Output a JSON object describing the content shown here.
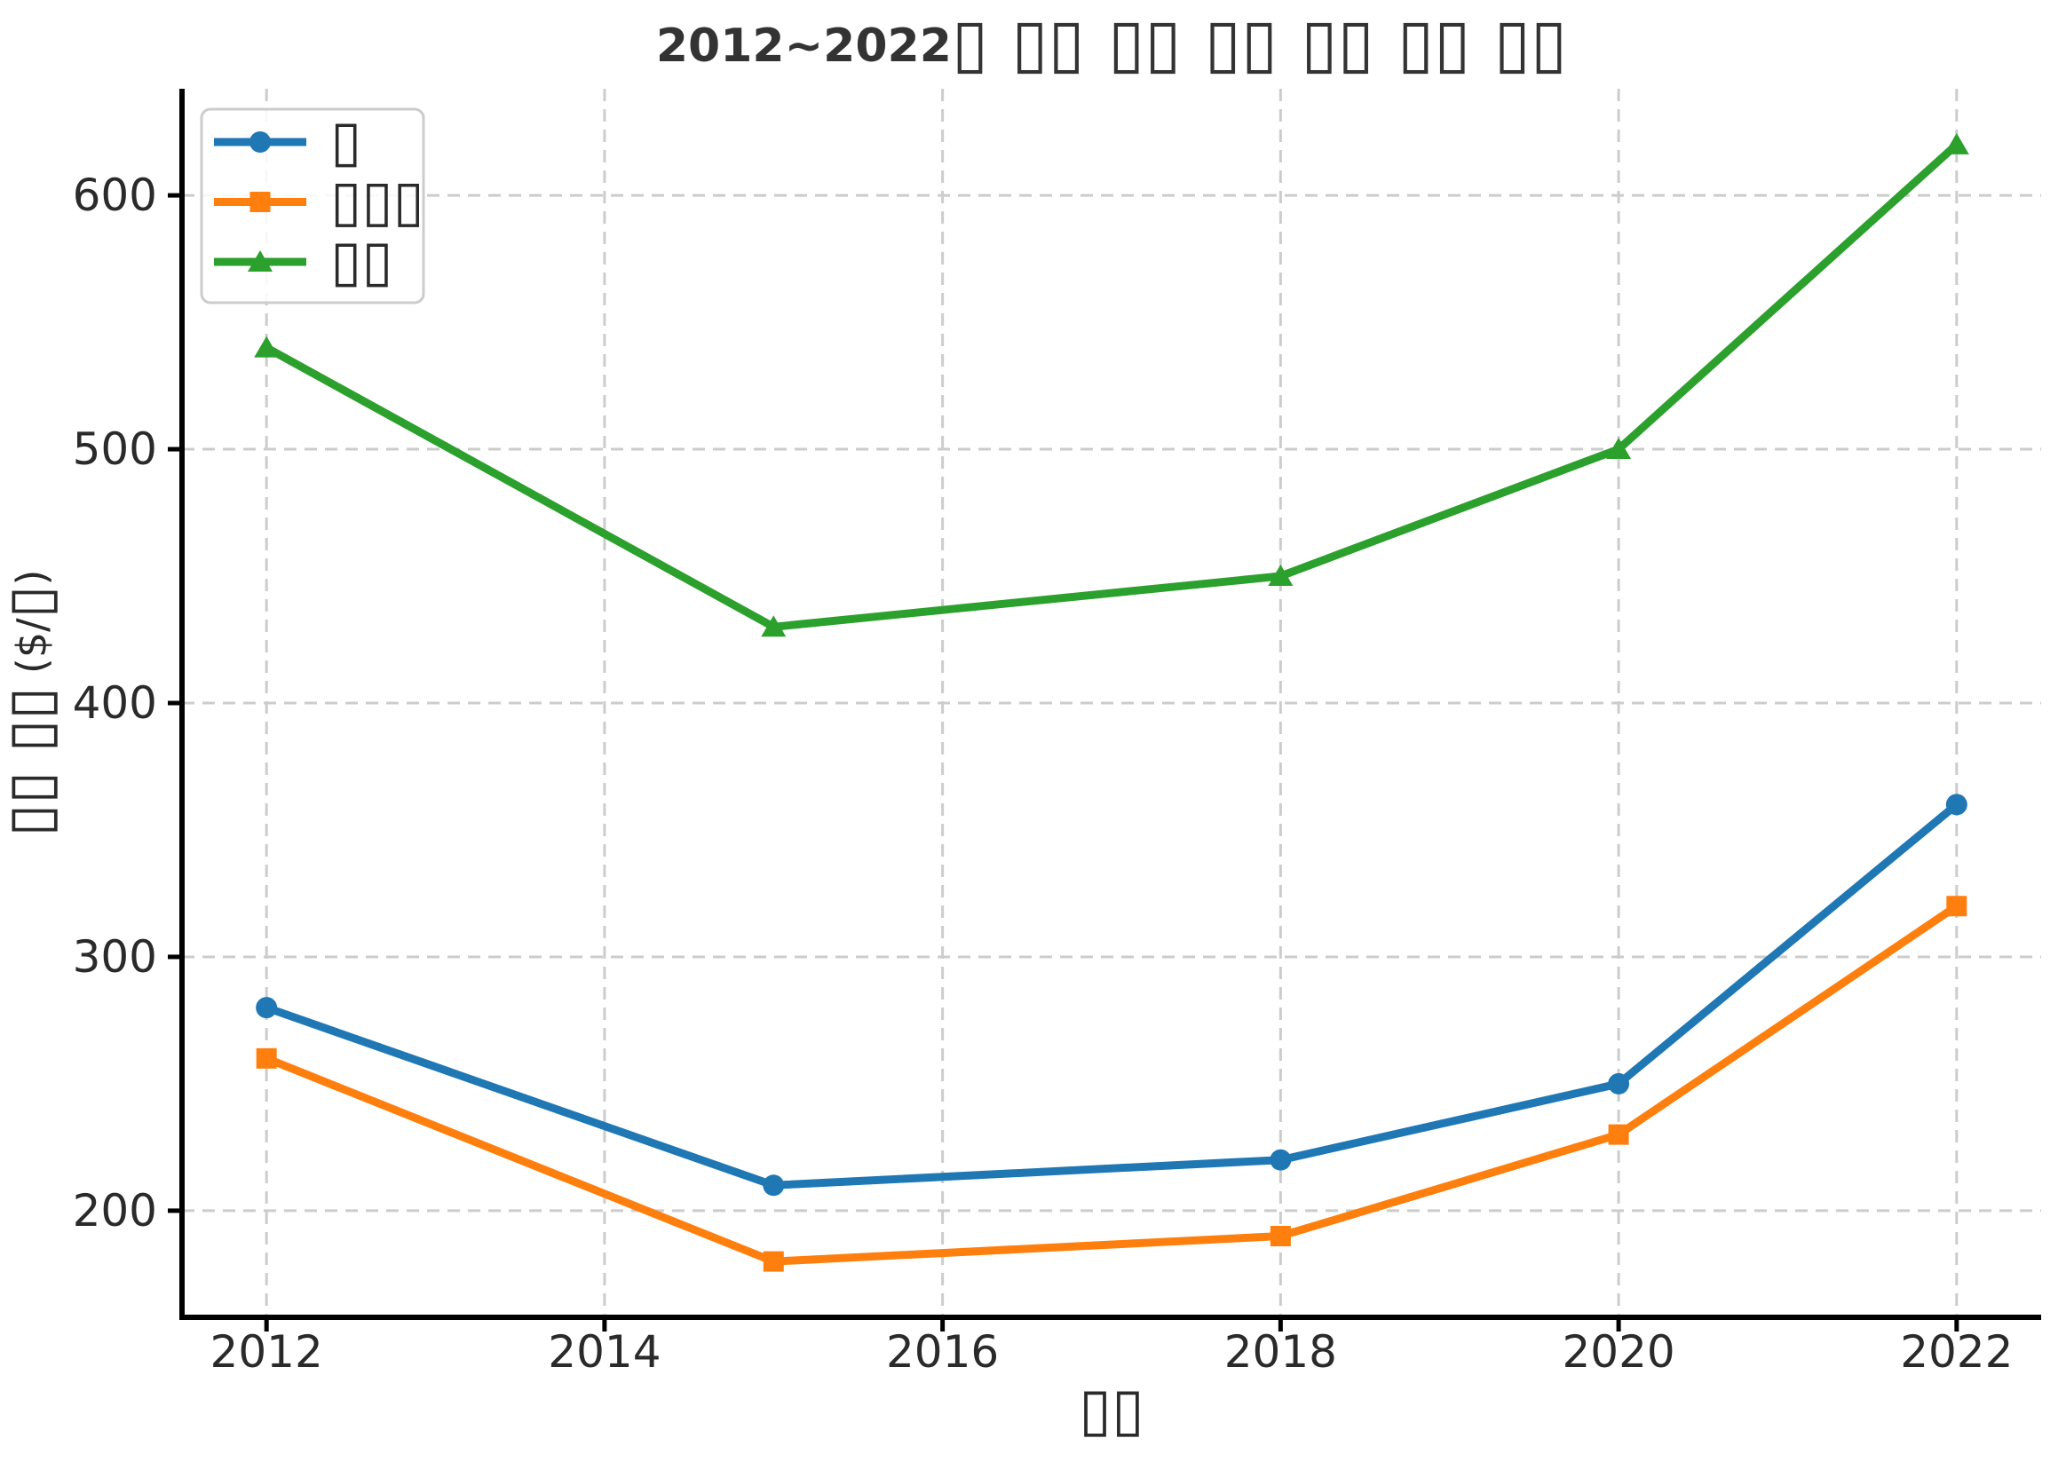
{
  "figure": {
    "background": "#ffffff"
  },
  "chart_data": {
    "type": "line",
    "title": "2012~2022▯ ▯▯ ▯▯ ▯▯ ▯▯ ▯▯ ▯▯",
    "xlabel": "▯▯",
    "ylabel": "▯▯ ▯▯ ($/▯)",
    "x": [
      2012,
      2015,
      2018,
      2020,
      2022
    ],
    "series": [
      {
        "name": "▯",
        "marker": "circle",
        "color": "#1f77b4",
        "values": [
          280,
          210,
          220,
          250,
          360
        ]
      },
      {
        "name": "▯▯▯",
        "marker": "square",
        "color": "#ff7f0e",
        "values": [
          260,
          180,
          190,
          230,
          320
        ]
      },
      {
        "name": "▯▯",
        "marker": "triangle",
        "color": "#2ca02c",
        "values": [
          540,
          430,
          450,
          500,
          620
        ]
      }
    ],
    "xticks": [
      2012,
      2014,
      2016,
      2018,
      2020,
      2022
    ],
    "yticks": [
      200,
      300,
      400,
      500,
      600
    ],
    "xlim": [
      2011.5,
      2022.5
    ],
    "ylim": [
      158,
      642
    ],
    "grid": true,
    "grid_style": "dashed",
    "legend_position": "upper-left"
  },
  "colors": {
    "grid": "#cccccc",
    "spine": "#000000",
    "tick_text": "#2a2a2a",
    "title_text": "#333333",
    "legend_border": "#cccccc",
    "legend_fill": "#ffffff"
  }
}
